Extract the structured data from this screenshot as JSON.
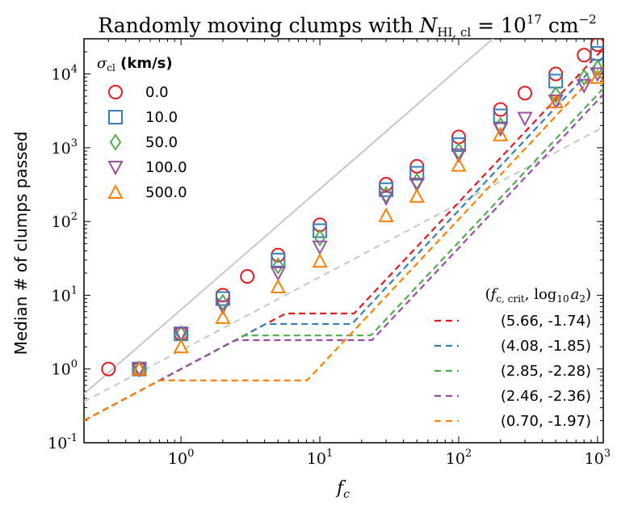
{
  "chart_data": {
    "type": "scatter",
    "title": {
      "prefix": "Randomly moving clumps with ",
      "var": "N",
      "var_sub": "HI, cl",
      "eq": " = 10",
      "exp": "17",
      "unit": " cm",
      "unit_exp": "−2"
    },
    "xlabel": {
      "var": "f",
      "sub": "c"
    },
    "ylabel": "Median # of clumps passed",
    "x_scale": "log",
    "y_scale": "log",
    "xlim": [
      0.2,
      1100
    ],
    "ylim": [
      0.1,
      30000
    ],
    "x_ticks": [
      {
        "value": 1,
        "base": "10",
        "exp": "0"
      },
      {
        "value": 10,
        "base": "10",
        "exp": "1"
      },
      {
        "value": 100,
        "base": "10",
        "exp": "2"
      },
      {
        "value": 1000,
        "base": "10",
        "exp": "3"
      }
    ],
    "y_ticks": [
      {
        "value": 0.1,
        "base": "10",
        "exp": "-1"
      },
      {
        "value": 1,
        "base": "10",
        "exp": "0"
      },
      {
        "value": 10,
        "base": "10",
        "exp": "1"
      },
      {
        "value": 100,
        "base": "10",
        "exp": "2"
      },
      {
        "value": 1000,
        "base": "10",
        "exp": "3"
      },
      {
        "value": 10000,
        "base": "10",
        "exp": "4"
      }
    ],
    "marker_legend": {
      "title_var": "σ",
      "title_sub": "cl",
      "title_unit": " (km/s)",
      "placement": "top-left"
    },
    "series": [
      {
        "name": "0.0",
        "marker": "circle",
        "color": "#e41a1c",
        "x": [
          0.3,
          0.5,
          1,
          2,
          3,
          5,
          10,
          30,
          50,
          100,
          200,
          300,
          500,
          800,
          1000
        ],
        "y": [
          1,
          1,
          3,
          10,
          18,
          35,
          90,
          320,
          560,
          1400,
          3300,
          5500,
          10000,
          18000,
          25000
        ]
      },
      {
        "name": "10.0",
        "marker": "square",
        "color": "#377eb8",
        "x": [
          0.5,
          1,
          2,
          5,
          10,
          30,
          50,
          100,
          200,
          500,
          1000
        ],
        "y": [
          1,
          3,
          9,
          30,
          75,
          270,
          450,
          1100,
          2700,
          8000,
          19000
        ]
      },
      {
        "name": "50.0",
        "marker": "diamond",
        "color": "#4daf4a",
        "x": [
          0.5,
          1,
          2,
          5,
          10,
          30,
          50,
          100,
          200,
          500,
          800,
          1000
        ],
        "y": [
          1,
          3,
          8,
          25,
          60,
          230,
          350,
          900,
          2000,
          5200,
          9000,
          12000
        ]
      },
      {
        "name": "100.0",
        "marker": "triangle-down",
        "color": "#984ea3",
        "x": [
          0.5,
          1,
          2,
          5,
          10,
          30,
          50,
          100,
          200,
          300,
          500,
          800,
          1000
        ],
        "y": [
          1,
          3,
          7,
          20,
          45,
          210,
          320,
          800,
          1800,
          2500,
          4300,
          7000,
          10000
        ]
      },
      {
        "name": "500.0",
        "marker": "triangle-up",
        "color": "#ff7f00",
        "x": [
          0.5,
          1,
          2,
          5,
          10,
          30,
          50,
          100,
          200,
          500,
          1000
        ],
        "y": [
          1,
          2,
          5,
          13,
          29,
          120,
          220,
          580,
          1500,
          4200,
          9000
        ]
      }
    ],
    "reference_lines": [
      {
        "kind": "solid",
        "color": "#c8c8c8",
        "x": [
          0.2,
          1100
        ],
        "y": [
          0.46,
          600000
        ]
      },
      {
        "kind": "dashed",
        "color": "#c8c8c8",
        "x": [
          0.2,
          1100
        ],
        "y": [
          0.36,
          1900
        ]
      }
    ],
    "fit_legend": {
      "title_prefix": "(",
      "title_var": "f",
      "title_sub": "c, crit",
      "title_mid": ", log",
      "title_log_sub": "10",
      "title_var2": "a",
      "title_var2_sub": "2",
      "title_suffix": ")",
      "placement": "bottom-right"
    },
    "fits": [
      {
        "label": "(5.66, -1.74)",
        "color": "#e41a1c",
        "fc_crit": 5.66,
        "log10_a2": -1.74
      },
      {
        "label": "(4.08, -1.85)",
        "color": "#377eb8",
        "fc_crit": 4.08,
        "log10_a2": -1.85
      },
      {
        "label": "(2.85, -2.28)",
        "color": "#4daf4a",
        "fc_crit": 2.85,
        "log10_a2": -2.28
      },
      {
        "label": "(2.46, -2.36)",
        "color": "#984ea3",
        "fc_crit": 2.46,
        "log10_a2": -2.36
      },
      {
        "label": "(0.70, -1.97)",
        "color": "#ff7f00",
        "fc_crit": 0.7,
        "log10_a2": -1.97
      }
    ]
  }
}
